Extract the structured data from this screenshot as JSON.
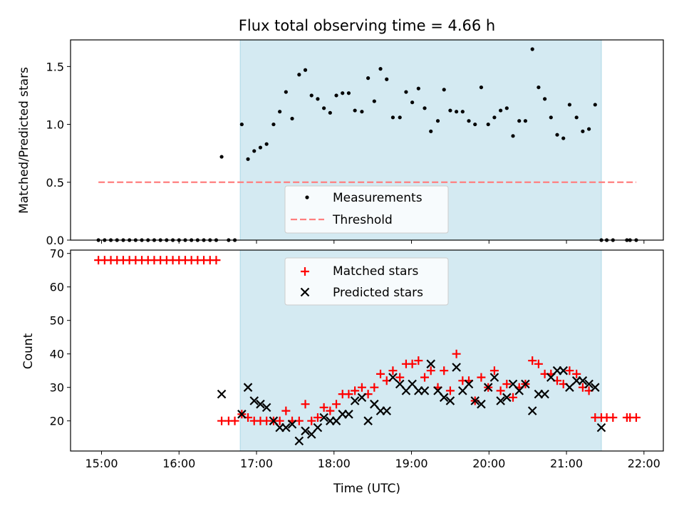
{
  "chart_data": {
    "title": "Flux total observing time = 4.66 h",
    "xlabel": "Time (UTC)",
    "x_units": "hours UTC",
    "xlim": [
      14.6,
      22.25
    ],
    "xticks": [
      15,
      16,
      17,
      18,
      19,
      20,
      21,
      22
    ],
    "xtick_labels": [
      "15:00",
      "16:00",
      "17:00",
      "18:00",
      "19:00",
      "20:00",
      "21:00",
      "22:00"
    ],
    "observing_window": [
      16.79,
      21.45
    ],
    "colors": {
      "window": "#add8e6",
      "threshold": "#ff7f7f",
      "matched": "#ff0000",
      "predicted": "#000000",
      "measure": "#000000"
    },
    "top": {
      "type": "scatter",
      "ylabel": "Matched/Predicted stars",
      "ylim": [
        0,
        1.73
      ],
      "yticks": [
        0.0,
        0.5,
        1.0,
        1.5
      ],
      "ytick_labels": [
        "0.0",
        "0.5",
        "1.0",
        "1.5"
      ],
      "threshold": {
        "value": 0.5,
        "x": [
          14.96,
          21.9
        ]
      },
      "legend": {
        "position": "lower-center",
        "entries": [
          "Measurements",
          "Threshold"
        ]
      },
      "measurements": [
        [
          14.96,
          0
        ],
        [
          15.04,
          0
        ],
        [
          15.12,
          0
        ],
        [
          15.2,
          0
        ],
        [
          15.28,
          0
        ],
        [
          15.36,
          0
        ],
        [
          15.44,
          0
        ],
        [
          15.52,
          0
        ],
        [
          15.6,
          0
        ],
        [
          15.68,
          0
        ],
        [
          15.76,
          0
        ],
        [
          15.84,
          0
        ],
        [
          15.92,
          0
        ],
        [
          16.0,
          0
        ],
        [
          16.08,
          0
        ],
        [
          16.16,
          0
        ],
        [
          16.24,
          0
        ],
        [
          16.32,
          0
        ],
        [
          16.4,
          0
        ],
        [
          16.48,
          0
        ],
        [
          16.55,
          0.72
        ],
        [
          16.64,
          0
        ],
        [
          16.72,
          0
        ],
        [
          16.81,
          1.0
        ],
        [
          16.89,
          0.7
        ],
        [
          16.97,
          0.77
        ],
        [
          17.05,
          0.8
        ],
        [
          17.13,
          0.83
        ],
        [
          17.22,
          1.0
        ],
        [
          17.3,
          1.11
        ],
        [
          17.38,
          1.28
        ],
        [
          17.46,
          1.05
        ],
        [
          17.55,
          1.43
        ],
        [
          17.63,
          1.47
        ],
        [
          17.71,
          1.25
        ],
        [
          17.79,
          1.22
        ],
        [
          17.87,
          1.14
        ],
        [
          17.95,
          1.1
        ],
        [
          18.03,
          1.25
        ],
        [
          18.11,
          1.27
        ],
        [
          18.19,
          1.27
        ],
        [
          18.27,
          1.12
        ],
        [
          18.36,
          1.11
        ],
        [
          18.44,
          1.4
        ],
        [
          18.52,
          1.2
        ],
        [
          18.6,
          1.48
        ],
        [
          18.68,
          1.39
        ],
        [
          18.76,
          1.06
        ],
        [
          18.85,
          1.06
        ],
        [
          18.93,
          1.28
        ],
        [
          19.01,
          1.19
        ],
        [
          19.09,
          1.31
        ],
        [
          19.17,
          1.14
        ],
        [
          19.25,
          0.94
        ],
        [
          19.34,
          1.03
        ],
        [
          19.42,
          1.3
        ],
        [
          19.5,
          1.12
        ],
        [
          19.58,
          1.11
        ],
        [
          19.66,
          1.11
        ],
        [
          19.74,
          1.03
        ],
        [
          19.82,
          1.0
        ],
        [
          19.9,
          1.32
        ],
        [
          19.99,
          1.0
        ],
        [
          20.07,
          1.06
        ],
        [
          20.15,
          1.12
        ],
        [
          20.23,
          1.14
        ],
        [
          20.31,
          0.9
        ],
        [
          20.39,
          1.03
        ],
        [
          20.47,
          1.03
        ],
        [
          20.56,
          1.65
        ],
        [
          20.64,
          1.32
        ],
        [
          20.72,
          1.22
        ],
        [
          20.8,
          1.06
        ],
        [
          20.88,
          0.91
        ],
        [
          20.96,
          0.88
        ],
        [
          21.04,
          1.17
        ],
        [
          21.13,
          1.06
        ],
        [
          21.21,
          0.94
        ],
        [
          21.29,
          0.96
        ],
        [
          21.37,
          1.17
        ],
        [
          21.45,
          0
        ],
        [
          21.52,
          0
        ],
        [
          21.6,
          0
        ],
        [
          21.78,
          0
        ],
        [
          21.82,
          0
        ],
        [
          21.9,
          0
        ]
      ]
    },
    "bottom": {
      "type": "scatter",
      "ylabel": "Count",
      "ylim": [
        11,
        71
      ],
      "yticks": [
        20,
        30,
        40,
        50,
        60,
        70
      ],
      "ytick_labels": [
        "20",
        "30",
        "40",
        "50",
        "60",
        "70"
      ],
      "legend": {
        "position": "upper-center",
        "entries": [
          "Matched stars",
          "Predicted stars"
        ]
      },
      "matched": [
        [
          14.96,
          68
        ],
        [
          15.04,
          68
        ],
        [
          15.12,
          68
        ],
        [
          15.2,
          68
        ],
        [
          15.28,
          68
        ],
        [
          15.36,
          68
        ],
        [
          15.44,
          68
        ],
        [
          15.52,
          68
        ],
        [
          15.6,
          68
        ],
        [
          15.68,
          68
        ],
        [
          15.76,
          68
        ],
        [
          15.84,
          68
        ],
        [
          15.92,
          68
        ],
        [
          16.0,
          68
        ],
        [
          16.08,
          68
        ],
        [
          16.16,
          68
        ],
        [
          16.24,
          68
        ],
        [
          16.32,
          68
        ],
        [
          16.4,
          68
        ],
        [
          16.48,
          68
        ],
        [
          16.55,
          20
        ],
        [
          16.64,
          20
        ],
        [
          16.72,
          20
        ],
        [
          16.81,
          22
        ],
        [
          16.89,
          21
        ],
        [
          16.97,
          20
        ],
        [
          17.05,
          20
        ],
        [
          17.13,
          20
        ],
        [
          17.22,
          20
        ],
        [
          17.3,
          20
        ],
        [
          17.38,
          23
        ],
        [
          17.46,
          20
        ],
        [
          17.55,
          20
        ],
        [
          17.63,
          25
        ],
        [
          17.71,
          20
        ],
        [
          17.79,
          21
        ],
        [
          17.87,
          24
        ],
        [
          17.95,
          23
        ],
        [
          18.03,
          25
        ],
        [
          18.11,
          28
        ],
        [
          18.19,
          28
        ],
        [
          18.27,
          29
        ],
        [
          18.36,
          30
        ],
        [
          18.44,
          28
        ],
        [
          18.52,
          30
        ],
        [
          18.6,
          34
        ],
        [
          18.68,
          32
        ],
        [
          18.76,
          35
        ],
        [
          18.85,
          33
        ],
        [
          18.93,
          37
        ],
        [
          19.01,
          37
        ],
        [
          19.09,
          38
        ],
        [
          19.17,
          33
        ],
        [
          19.25,
          35
        ],
        [
          19.34,
          30
        ],
        [
          19.42,
          35
        ],
        [
          19.5,
          29
        ],
        [
          19.58,
          40
        ],
        [
          19.66,
          32
        ],
        [
          19.74,
          32
        ],
        [
          19.82,
          26
        ],
        [
          19.9,
          33
        ],
        [
          19.99,
          30
        ],
        [
          20.07,
          35
        ],
        [
          20.15,
          29
        ],
        [
          20.23,
          31
        ],
        [
          20.31,
          27
        ],
        [
          20.39,
          30
        ],
        [
          20.47,
          31
        ],
        [
          20.56,
          38
        ],
        [
          20.64,
          37
        ],
        [
          20.72,
          34
        ],
        [
          20.8,
          34
        ],
        [
          20.88,
          32
        ],
        [
          20.96,
          31
        ],
        [
          21.04,
          35
        ],
        [
          21.13,
          34
        ],
        [
          21.21,
          30
        ],
        [
          21.29,
          29
        ],
        [
          21.37,
          21
        ],
        [
          21.45,
          21
        ],
        [
          21.52,
          21
        ],
        [
          21.6,
          21
        ],
        [
          21.78,
          21
        ],
        [
          21.82,
          21
        ],
        [
          21.9,
          21
        ]
      ],
      "predicted": [
        [
          16.55,
          28
        ],
        [
          16.81,
          22
        ],
        [
          16.89,
          30
        ],
        [
          16.97,
          26
        ],
        [
          17.05,
          25
        ],
        [
          17.13,
          24
        ],
        [
          17.22,
          20
        ],
        [
          17.3,
          18
        ],
        [
          17.38,
          18
        ],
        [
          17.46,
          19
        ],
        [
          17.55,
          14
        ],
        [
          17.63,
          17
        ],
        [
          17.71,
          16
        ],
        [
          17.79,
          18
        ],
        [
          17.87,
          21
        ],
        [
          17.95,
          20
        ],
        [
          18.03,
          20
        ],
        [
          18.11,
          22
        ],
        [
          18.19,
          22
        ],
        [
          18.27,
          26
        ],
        [
          18.36,
          27
        ],
        [
          18.44,
          20
        ],
        [
          18.52,
          25
        ],
        [
          18.6,
          23
        ],
        [
          18.68,
          23
        ],
        [
          18.76,
          33
        ],
        [
          18.85,
          31
        ],
        [
          18.93,
          29
        ],
        [
          19.01,
          31
        ],
        [
          19.09,
          29
        ],
        [
          19.17,
          29
        ],
        [
          19.25,
          37
        ],
        [
          19.34,
          29
        ],
        [
          19.42,
          27
        ],
        [
          19.5,
          26
        ],
        [
          19.58,
          36
        ],
        [
          19.66,
          29
        ],
        [
          19.74,
          31
        ],
        [
          19.82,
          26
        ],
        [
          19.9,
          25
        ],
        [
          19.99,
          30
        ],
        [
          20.07,
          33
        ],
        [
          20.15,
          26
        ],
        [
          20.23,
          27
        ],
        [
          20.31,
          31
        ],
        [
          20.39,
          29
        ],
        [
          20.47,
          31
        ],
        [
          20.56,
          23
        ],
        [
          20.64,
          28
        ],
        [
          20.72,
          28
        ],
        [
          20.8,
          33
        ],
        [
          20.88,
          35
        ],
        [
          20.96,
          35
        ],
        [
          21.04,
          30
        ],
        [
          21.13,
          32
        ],
        [
          21.21,
          32
        ],
        [
          21.29,
          31
        ],
        [
          21.37,
          30
        ],
        [
          21.45,
          18
        ]
      ]
    }
  }
}
